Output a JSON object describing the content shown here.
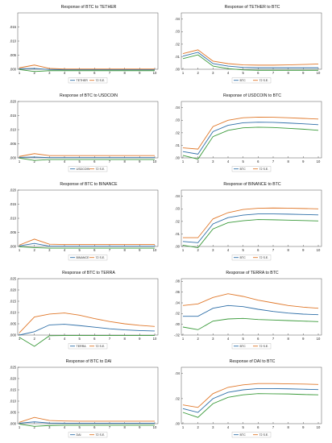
{
  "colors": {
    "response": "#2f6fa8",
    "band": "#e0782a",
    "bandAlt": "#3a9a3a",
    "axis": "#555555"
  },
  "chart_data": [
    {
      "type": "line",
      "title": "Response of BTC to TETHER",
      "x": [
        1,
        2,
        3,
        4,
        5,
        6,
        7,
        8,
        9,
        10
      ],
      "ylim": [
        0.0,
        0.02
      ],
      "yticks": [
        ".000",
        ".005",
        ".010",
        ".015"
      ],
      "series": [
        {
          "name": "TETHER",
          "values": [
            0.0002,
            0.0003,
            -0.0001,
            -0.0002,
            -0.0002,
            -0.0002,
            -0.0002,
            -0.0002,
            -0.0002,
            -0.0002
          ]
        },
        {
          "name": "72 S.E.",
          "values": [
            0.0005,
            0.0015,
            0.0003,
            0.0001,
            0.0001,
            0.0001,
            0.0001,
            0.0001,
            0.0001,
            0.0001
          ]
        },
        {
          "name": "",
          "values": [
            -0.0001,
            -0.0008,
            -0.0005,
            -0.0005,
            -0.0005,
            -0.0005,
            -0.0005,
            -0.0005,
            -0.0005,
            -0.0005
          ]
        }
      ]
    },
    {
      "type": "line",
      "title": "Response of TETHER to BTC",
      "x": [
        1,
        2,
        3,
        4,
        5,
        6,
        7,
        8,
        9,
        10
      ],
      "ylim": [
        0.0,
        0.045
      ],
      "yticks": [
        ".00",
        ".01",
        ".02",
        ".03",
        ".04"
      ],
      "series": [
        {
          "name": "BTC",
          "values": [
            0.0105,
            0.0135,
            0.0045,
            0.0025,
            0.0015,
            0.0012,
            0.0012,
            0.0012,
            0.0012,
            0.0012
          ]
        },
        {
          "name": "72 S.E.",
          "values": [
            0.0125,
            0.0155,
            0.0065,
            0.0045,
            0.0035,
            0.0033,
            0.0033,
            0.0035,
            0.0038,
            0.0042
          ]
        },
        {
          "name": "",
          "values": [
            0.0085,
            0.0115,
            0.0025,
            0.0005,
            -0.0005,
            -0.0008,
            -0.0008,
            -0.0008,
            -0.0008,
            -0.0008
          ]
        }
      ]
    },
    {
      "type": "line",
      "title": "Response of BTC to USDCOIN",
      "x": [
        1,
        2,
        3,
        4,
        5,
        6,
        7,
        8,
        9,
        10
      ],
      "ylim": [
        0.0,
        0.02
      ],
      "yticks": [
        ".000",
        ".005",
        ".010",
        ".015",
        ".020"
      ],
      "series": [
        {
          "name": "USDCOIN",
          "values": [
            0.0002,
            0.0003,
            0.0001,
            0.0001,
            0.0001,
            0.0001,
            0.0001,
            0.0001,
            0.0001,
            0.0001
          ]
        },
        {
          "name": "72 S.E.",
          "values": [
            0.0005,
            0.0015,
            0.0008,
            0.0008,
            0.0008,
            0.0008,
            0.0008,
            0.0008,
            0.0008,
            0.0008
          ]
        },
        {
          "name": "",
          "values": [
            -0.0001,
            -0.0009,
            -0.0006,
            -0.0006,
            -0.0006,
            -0.0006,
            -0.0006,
            -0.0006,
            -0.0006,
            -0.0006
          ]
        }
      ]
    },
    {
      "type": "line",
      "title": "Response of USDCOIN to BTC",
      "x": [
        1,
        2,
        3,
        4,
        5,
        6,
        7,
        8,
        9,
        10
      ],
      "ylim": [
        0.0,
        0.045
      ],
      "yticks": [
        ".00",
        ".01",
        ".02",
        ".03",
        ".04"
      ],
      "series": [
        {
          "name": "BTC",
          "values": [
            0.005,
            0.003,
            0.021,
            0.026,
            0.028,
            0.0285,
            0.0283,
            0.0278,
            0.0272,
            0.0265
          ]
        },
        {
          "name": "72 S.E.",
          "values": [
            0.008,
            0.007,
            0.025,
            0.03,
            0.032,
            0.0325,
            0.0324,
            0.032,
            0.0315,
            0.031
          ]
        },
        {
          "name": "",
          "values": [
            0.002,
            -0.001,
            0.017,
            0.022,
            0.024,
            0.0245,
            0.0242,
            0.0236,
            0.0229,
            0.022
          ]
        }
      ]
    },
    {
      "type": "line",
      "title": "Response of BTC to BINANCE",
      "x": [
        1,
        2,
        3,
        4,
        5,
        6,
        7,
        8,
        9,
        10
      ],
      "ylim": [
        0.0,
        0.02
      ],
      "yticks": [
        ".000",
        ".005",
        ".010",
        ".015",
        ".020"
      ],
      "series": [
        {
          "name": "BINANCE",
          "values": [
            0.0002,
            0.0011,
            0.0001,
            0.0001,
            0.0001,
            0.0001,
            0.0001,
            0.0001,
            0.0001,
            0.0001
          ]
        },
        {
          "name": "72 S.E.",
          "values": [
            0.0005,
            0.0026,
            0.0008,
            0.0007,
            0.0007,
            0.0007,
            0.0007,
            0.0007,
            0.0007,
            0.0007
          ]
        },
        {
          "name": "",
          "values": [
            -0.0001,
            -0.0004,
            -0.0006,
            -0.0006,
            -0.0006,
            -0.0006,
            -0.0006,
            -0.0006,
            -0.0006,
            -0.0006
          ]
        }
      ]
    },
    {
      "type": "line",
      "title": "Response of BINANCE to BTC",
      "x": [
        1,
        2,
        3,
        4,
        5,
        6,
        7,
        8,
        9,
        10
      ],
      "ylim": [
        0.0,
        0.045
      ],
      "yticks": [
        ".00",
        ".01",
        ".02",
        ".03",
        ".04"
      ],
      "series": [
        {
          "name": "BTC",
          "values": [
            0.004,
            0.003,
            0.018,
            0.023,
            0.025,
            0.026,
            0.026,
            0.0258,
            0.0255,
            0.0252
          ]
        },
        {
          "name": "72 S.E.",
          "values": [
            0.007,
            0.007,
            0.022,
            0.027,
            0.0295,
            0.0305,
            0.0307,
            0.0306,
            0.0303,
            0.03
          ]
        },
        {
          "name": "",
          "values": [
            0.001,
            -0.001,
            0.014,
            0.019,
            0.0205,
            0.0215,
            0.0213,
            0.021,
            0.0207,
            0.0204
          ]
        }
      ]
    },
    {
      "type": "line",
      "title": "Response of BTC to TERRA",
      "x": [
        1,
        2,
        3,
        4,
        5,
        6,
        7,
        8,
        9,
        10
      ],
      "ylim": [
        0.0,
        0.025
      ],
      "yticks": [
        ".000",
        ".005",
        ".010",
        ".015",
        ".020",
        ".025"
      ],
      "series": [
        {
          "name": "TERRA",
          "values": [
            0.0,
            0.0015,
            0.0045,
            0.0048,
            0.0042,
            0.0035,
            0.0028,
            0.0023,
            0.002,
            0.0018
          ]
        },
        {
          "name": "72 S.E.",
          "values": [
            0.001,
            0.008,
            0.0093,
            0.0098,
            0.0088,
            0.0073,
            0.006,
            0.005,
            0.0043,
            0.0038
          ]
        },
        {
          "name": "",
          "values": [
            -0.001,
            -0.005,
            -0.0003,
            -0.0002,
            -0.0002,
            -0.0002,
            -0.0002,
            -0.0002,
            -0.0002,
            -0.0002
          ]
        }
      ]
    },
    {
      "type": "line",
      "title": "Response of TERRA to BTC",
      "x": [
        1,
        2,
        3,
        4,
        5,
        6,
        7,
        8,
        9,
        10
      ],
      "ylim": [
        -0.02,
        0.085
      ],
      "yticks": [
        "-.02",
        ".00",
        ".02",
        ".04",
        ".06",
        ".08"
      ],
      "series": [
        {
          "name": "BTC",
          "values": [
            0.015,
            0.015,
            0.03,
            0.035,
            0.033,
            0.028,
            0.024,
            0.021,
            0.019,
            0.018
          ]
        },
        {
          "name": "72 S.E.",
          "values": [
            0.035,
            0.038,
            0.05,
            0.057,
            0.052,
            0.045,
            0.04,
            0.035,
            0.032,
            0.03
          ]
        },
        {
          "name": "",
          "values": [
            -0.005,
            -0.01,
            0.006,
            0.01,
            0.011,
            0.009,
            0.008,
            0.007,
            0.006,
            0.005
          ]
        }
      ]
    },
    {
      "type": "line",
      "title": "Response of BTC to DAI",
      "x": [
        1,
        2,
        3,
        4,
        5,
        6,
        7,
        8,
        9,
        10
      ],
      "ylim": [
        0.0,
        0.025
      ],
      "yticks": [
        ".000",
        ".005",
        ".010",
        ".015",
        ".020",
        ".025"
      ],
      "series": [
        {
          "name": "DAI",
          "values": [
            0.0002,
            0.0008,
            0.0003,
            0.0002,
            0.0002,
            0.0002,
            0.0002,
            0.0002,
            0.0002,
            0.0002
          ]
        },
        {
          "name": "72 S.E.",
          "values": [
            0.0006,
            0.0028,
            0.0014,
            0.0012,
            0.0011,
            0.0011,
            0.0011,
            0.0011,
            0.0011,
            0.0011
          ]
        },
        {
          "name": "",
          "values": [
            -0.0002,
            -0.0012,
            -0.0008,
            -0.0007,
            -0.0007,
            -0.0007,
            -0.0007,
            -0.0007,
            -0.0007,
            -0.0007
          ]
        }
      ]
    },
    {
      "type": "line",
      "title": "Response of DAI to BTC",
      "x": [
        1,
        2,
        3,
        4,
        5,
        6,
        7,
        8,
        9,
        10
      ],
      "ylim": [
        0.0,
        0.045
      ],
      "yticks": [
        ".00",
        ".02",
        ".04"
      ],
      "series": [
        {
          "name": "BTC",
          "values": [
            0.012,
            0.009,
            0.02,
            0.025,
            0.027,
            0.028,
            0.028,
            0.0278,
            0.0275,
            0.0272
          ]
        },
        {
          "name": "72 S.E.",
          "values": [
            0.015,
            0.013,
            0.024,
            0.029,
            0.031,
            0.032,
            0.032,
            0.0318,
            0.0316,
            0.0313
          ]
        },
        {
          "name": "",
          "values": [
            0.009,
            0.005,
            0.016,
            0.021,
            0.023,
            0.024,
            0.0238,
            0.0237,
            0.0233,
            0.023
          ]
        }
      ]
    }
  ]
}
